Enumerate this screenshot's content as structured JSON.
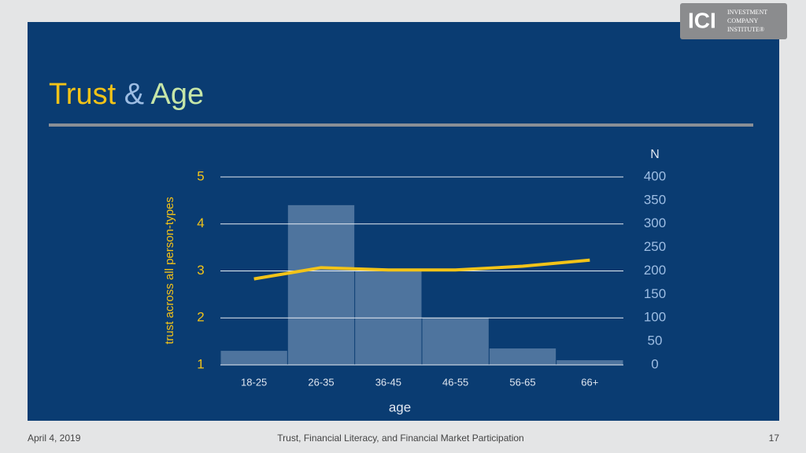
{
  "slide": {
    "title_parts": [
      "Trust",
      "&",
      "Age"
    ],
    "logo": {
      "mark": "ICI",
      "lines": [
        "INVESTMENT",
        "COMPANY",
        "INSTITUTE®"
      ]
    },
    "footer": {
      "date": "April 4, 2019",
      "title": "Trust, Financial Literacy, and Financial Market Participation",
      "page": "17"
    }
  },
  "chart_data": {
    "type": "bar",
    "categories": [
      "18-25",
      "26-35",
      "36-45",
      "46-55",
      "56-65",
      "66+"
    ],
    "series": [
      {
        "color": "#5b7ea6",
        "axis": "y2",
        "values": [
          30,
          340,
          200,
          100,
          35,
          10
        ]
      },
      {
        "type": "line",
        "color": "#f2c318",
        "values": [
          2.83,
          3.07,
          3.02,
          3.02,
          3.1,
          3.23
        ]
      }
    ],
    "ylabel": "trust across all person-types",
    "xlabel": "age",
    "y2label": "N",
    "ylim": [
      1,
      5
    ],
    "yticks": [
      1,
      2,
      3,
      4,
      5
    ],
    "y2lim": [
      0,
      400
    ],
    "y2ticks": [
      0,
      50,
      100,
      150,
      200,
      250,
      300,
      350,
      400
    ],
    "grid": true
  }
}
